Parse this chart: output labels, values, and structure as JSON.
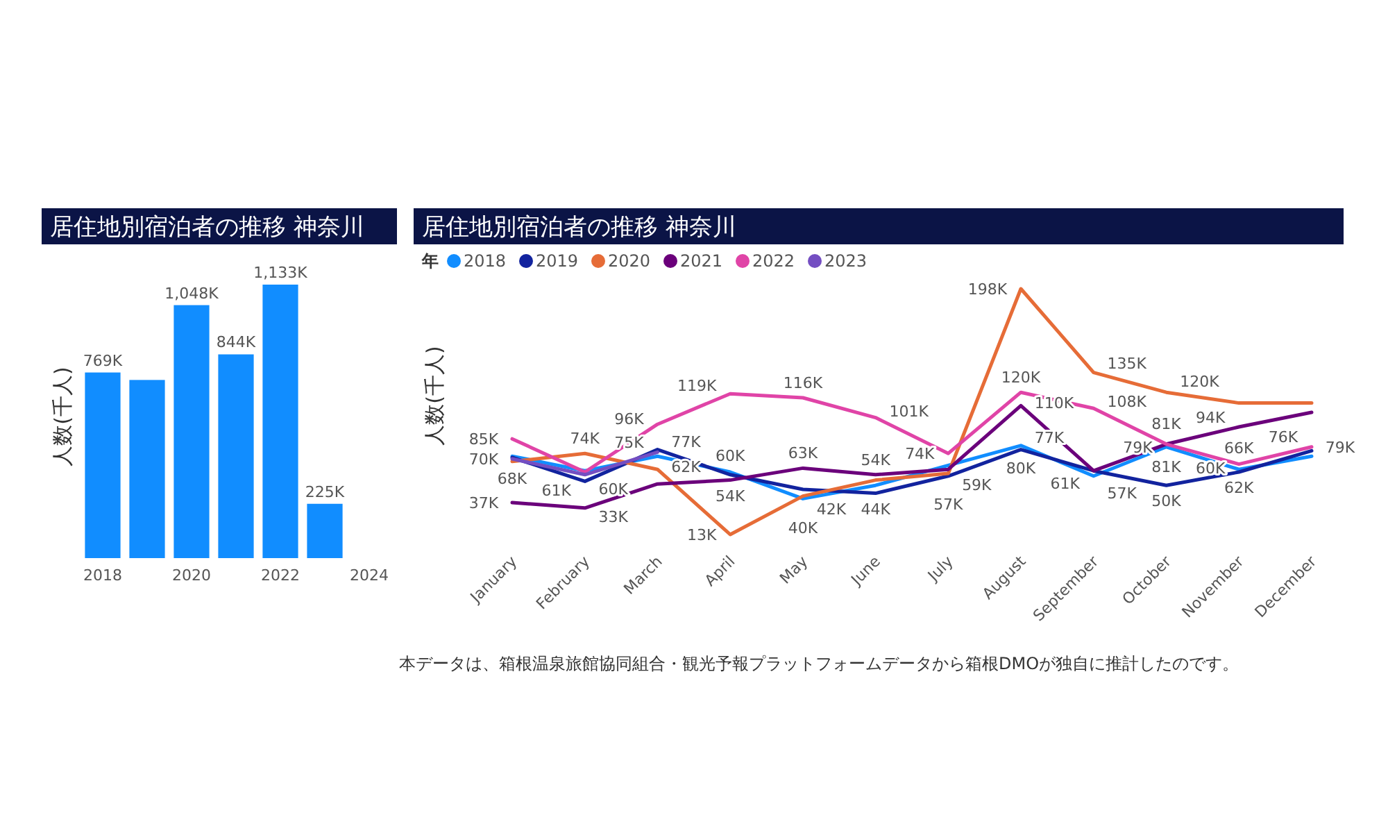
{
  "chart_data": [
    {
      "type": "bar",
      "title": "居住地別宿泊者の推移 神奈川",
      "ylabel": "人数(千人)",
      "categories": [
        "2018",
        null,
        "2020",
        null,
        "2022",
        null,
        "2024"
      ],
      "values": [
        769,
        738,
        1048,
        844,
        1133,
        225,
        null
      ],
      "value_labels": [
        "769K",
        null,
        "1,048K",
        "844K",
        "1,133K",
        "225K",
        null
      ],
      "color": "#118dff"
    },
    {
      "type": "line",
      "title": "居住地別宿泊者の推移 神奈川",
      "ylabel": "人数(千人)",
      "legend_title": "年",
      "legend": "top left",
      "categories": [
        "January",
        "February",
        "March",
        "April",
        "May",
        "June",
        "July",
        "August",
        "September",
        "October",
        "November",
        "December"
      ],
      "series": [
        {
          "name": "2018",
          "color": "#118dff",
          "values": [
            72,
            61,
            72,
            60,
            40,
            50,
            65,
            80,
            57,
            79,
            62,
            72
          ],
          "value_labels": [
            null,
            "61K",
            null,
            "60K",
            "40K",
            null,
            null,
            "80K",
            "57K",
            "79K",
            "62K",
            null
          ]
        },
        {
          "name": "2019",
          "color": "#12239e",
          "values": [
            71,
            53,
            77,
            58,
            47,
            44,
            57,
            77,
            61,
            50,
            60,
            76
          ],
          "value_labels": [
            null,
            null,
            "77K",
            null,
            null,
            "44K",
            "57K",
            "77K",
            null,
            "50K",
            "60K",
            "76K"
          ]
        },
        {
          "name": "2020",
          "color": "#e66c37",
          "values": [
            68,
            74,
            62,
            13,
            42,
            54,
            59,
            198,
            135,
            120,
            112,
            112
          ],
          "value_labels": [
            "68K",
            "74K",
            "62K",
            "13K",
            "42K",
            "54K",
            "59K",
            "198K",
            "135K",
            "120K",
            null,
            null
          ]
        },
        {
          "name": "2021",
          "color": "#6b007b",
          "values": [
            37,
            33,
            51,
            54,
            63,
            58,
            62,
            110,
            61,
            81,
            94,
            105
          ],
          "value_labels": [
            "37K",
            "33K",
            null,
            "54K",
            "63K",
            null,
            null,
            "110K",
            "61K",
            "81K",
            "94K",
            null
          ]
        },
        {
          "name": "2022",
          "color": "#e044a7",
          "values": [
            85,
            60,
            96,
            119,
            116,
            101,
            74,
            120,
            108,
            81,
            66,
            79
          ],
          "value_labels": [
            "85K",
            "60K",
            "96K",
            "119K",
            "116K",
            "101K",
            "74K",
            "120K",
            "108K",
            "81K",
            "66K",
            "79K"
          ]
        },
        {
          "name": "2023",
          "color": "#744ec2",
          "values": [
            70,
            58,
            75,
            null,
            null,
            null,
            null,
            null,
            null,
            null,
            null,
            null
          ],
          "value_labels": [
            "70K",
            null,
            "75K",
            null,
            null,
            null,
            null,
            null,
            null,
            null,
            null,
            null
          ]
        }
      ],
      "annotations": [
        "本データは、箱根温泉旅館協同組合・観光予報プラットフォームデータから箱根DMOが独自に推計したのです。"
      ]
    }
  ]
}
